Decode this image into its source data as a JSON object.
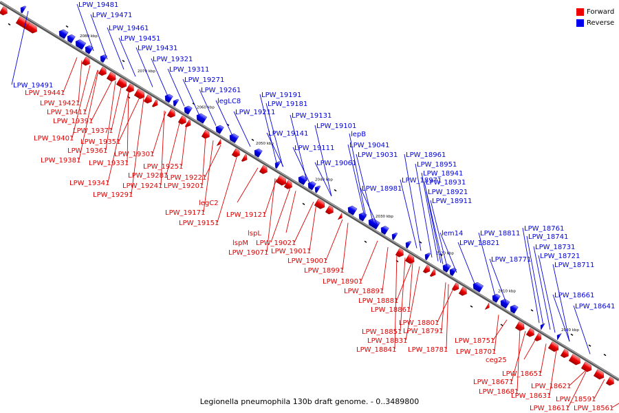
{
  "colors": {
    "forward": "#ee0000",
    "reverse": "#0000ee",
    "axis": "#888888",
    "label_forward": "#dd0000",
    "label_reverse": "#0000dd"
  },
  "legend": [
    {
      "label": "Forward",
      "color": "#ee0000"
    },
    {
      "label": "Reverse",
      "color": "#0000ee"
    }
  ],
  "caption": "Legionella pneumophila 130b draft genome. - 0..3489800",
  "ticks": [
    "2080 kbp",
    "2070 kbp",
    "2060 kbp",
    "2050 kbp",
    "2040 kbp",
    "2030 kbp",
    "2020 kbp",
    "2010 kbp",
    "2000 kbp"
  ],
  "reverse_labels": [
    "LPW_19481",
    "LPW_19471",
    "LPW_19461",
    "LPW_19451",
    "LPW_19431",
    "LPW_19491",
    "LPW_19321",
    "LPW_19311",
    "LPW_19271",
    "LPW_19261",
    "legLC8",
    "LPW_19191",
    "LPW_19181",
    "LPW_19211",
    "LPW_19131",
    "LPW_19101",
    "LPW_19141",
    "lepB",
    "LPW_19041",
    "LPW_19031",
    "LPW_19111",
    "LPW_19061",
    "LPW_18961",
    "LPW_18951",
    "LPW_18941",
    "LPW_18971",
    "LPW_18931",
    "LPW_18981",
    "LPW_18921",
    "LPW_18911",
    "lem14",
    "LPW_18811",
    "LPW_18821",
    "LPW_18761",
    "LPW_18741",
    "LPW_18731",
    "LPW_18721",
    "LPW_18771",
    "LPW_18711",
    "LPW_18661",
    "LPW_18641"
  ],
  "forward_labels": [
    "LPW_19441",
    "LPW_19421",
    "LPW_19411",
    "LPW_19391",
    "LPW_19371",
    "LPW_19401",
    "LPW_19351",
    "LPW_19361",
    "LPW_19381",
    "LPW_19301",
    "LPW_19331",
    "LPW_19251",
    "LPW_19281",
    "LPW_19221",
    "LPW_19341",
    "LPW_19241",
    "LPW_19201",
    "LPW_19291",
    "legC2",
    "LPW_19171",
    "LPW_19121",
    "LPW_19151",
    "lspL",
    "lspM",
    "LPW_19021",
    "LPW_19011",
    "LPW_19071",
    "LPW_19001",
    "LPW_18991",
    "LPW_18901",
    "LPW_18891",
    "LPW_18881",
    "LPW_18861",
    "LPW_18801",
    "LPW_18851",
    "LPW_18791",
    "LPW_18831",
    "LPW_18751",
    "LPW_18841",
    "LPW_18781",
    "LPW_18701",
    "ceg25",
    "LPW_18651",
    "LPW_18671",
    "LPW_18681",
    "LPW_18621",
    "LPW_18631",
    "LPW_18591",
    "LPW_18611",
    "LPW_18561"
  ]
}
